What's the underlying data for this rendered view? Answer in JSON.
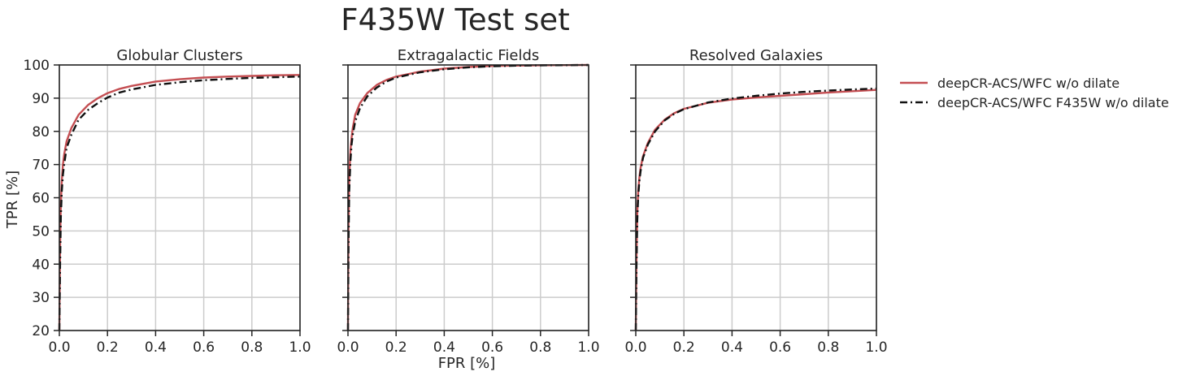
{
  "chart_data": {
    "type": "line",
    "title": "F435W Test set",
    "xlabel": "FPR [%]",
    "ylabel": "TPR [%]",
    "xlim": [
      0.0,
      1.0
    ],
    "ylim": [
      20,
      100
    ],
    "xticks": [
      "0.0",
      "0.2",
      "0.4",
      "0.6",
      "0.8",
      "1.0"
    ],
    "yticks": [
      "20",
      "30",
      "40",
      "50",
      "60",
      "70",
      "80",
      "90",
      "100"
    ],
    "grid": true,
    "legend_position": "outside-right",
    "legend": [
      {
        "label": "deepCR-ACS/WFC w/o dilate",
        "color": "#c44e52",
        "style": "solid"
      },
      {
        "label": "deepCR-ACS/WFC F435W w/o dilate",
        "color": "#111111",
        "style": "dashdot"
      }
    ],
    "panels": [
      {
        "title": "Globular Clusters",
        "series": [
          {
            "name": "deepCR-ACS/WFC w/o dilate",
            "color": "#c44e52",
            "style": "solid",
            "x": [
              0.0,
              0.003,
              0.006,
              0.01,
              0.015,
              0.02,
              0.03,
              0.05,
              0.08,
              0.12,
              0.16,
              0.2,
              0.25,
              0.3,
              0.4,
              0.5,
              0.6,
              0.7,
              0.8,
              0.9,
              1.0
            ],
            "y": [
              20,
              45,
              58,
              65,
              70,
              73,
              77,
              81,
              85,
              88,
              90,
              91.5,
              92.8,
              93.7,
              95.0,
              95.7,
              96.2,
              96.5,
              96.7,
              96.9,
              97.0
            ]
          },
          {
            "name": "deepCR-ACS/WFC F435W w/o dilate",
            "color": "#111111",
            "style": "dashdot",
            "x": [
              0.0,
              0.003,
              0.006,
              0.01,
              0.015,
              0.02,
              0.03,
              0.05,
              0.08,
              0.12,
              0.16,
              0.2,
              0.25,
              0.3,
              0.4,
              0.5,
              0.6,
              0.7,
              0.8,
              0.9,
              1.0
            ],
            "y": [
              20,
              40,
              54,
              62,
              67,
              70,
              75,
              79,
              83.5,
              86.5,
              88.5,
              90.2,
              91.7,
              92.6,
              94.0,
              94.8,
              95.4,
              95.8,
              96.1,
              96.3,
              96.5
            ]
          }
        ]
      },
      {
        "title": "Extragalactic Fields",
        "series": [
          {
            "name": "deepCR-ACS/WFC w/o dilate",
            "color": "#c44e52",
            "style": "solid",
            "x": [
              0.0,
              0.002,
              0.005,
              0.01,
              0.015,
              0.02,
              0.03,
              0.05,
              0.08,
              0.12,
              0.16,
              0.2,
              0.3,
              0.4,
              0.5,
              0.6,
              0.7,
              0.8,
              0.9,
              1.0
            ],
            "y": [
              20,
              50,
              66,
              74,
              78,
              81,
              85,
              88.5,
              91.5,
              94,
              95.5,
              96.5,
              98,
              98.9,
              99.4,
              99.7,
              99.8,
              99.9,
              99.95,
              100
            ]
          },
          {
            "name": "deepCR-ACS/WFC F435W w/o dilate",
            "color": "#111111",
            "style": "dashdot",
            "x": [
              0.0,
              0.002,
              0.005,
              0.01,
              0.015,
              0.02,
              0.03,
              0.05,
              0.08,
              0.12,
              0.16,
              0.2,
              0.3,
              0.4,
              0.5,
              0.6,
              0.7,
              0.8,
              0.9,
              1.0
            ],
            "y": [
              20,
              45,
              62,
              71,
              76,
              79,
              83,
              87,
              90.5,
              93.2,
              95,
              96.2,
              97.8,
              98.7,
              99.3,
              99.6,
              99.8,
              99.9,
              99.95,
              100
            ]
          }
        ]
      },
      {
        "title": "Resolved Galaxies",
        "series": [
          {
            "name": "deepCR-ACS/WFC w/o dilate",
            "color": "#c44e52",
            "style": "solid",
            "x": [
              0.0,
              0.003,
              0.006,
              0.01,
              0.015,
              0.02,
              0.03,
              0.05,
              0.08,
              0.12,
              0.16,
              0.2,
              0.3,
              0.4,
              0.5,
              0.6,
              0.7,
              0.8,
              0.9,
              1.0
            ],
            "y": [
              20,
              42,
              55,
              62,
              66,
              69,
              72.5,
              76.5,
              80.5,
              83.5,
              85.5,
              86.8,
              88.6,
              89.6,
              90.2,
              90.7,
              91.2,
              91.7,
              92.1,
              92.5
            ]
          },
          {
            "name": "deepCR-ACS/WFC F435W w/o dilate",
            "color": "#111111",
            "style": "dashdot",
            "x": [
              0.0,
              0.003,
              0.006,
              0.01,
              0.015,
              0.02,
              0.03,
              0.05,
              0.08,
              0.12,
              0.16,
              0.2,
              0.3,
              0.4,
              0.5,
              0.6,
              0.7,
              0.8,
              0.9,
              1.0
            ],
            "y": [
              20,
              40,
              53,
              60.5,
              65,
              68,
              72,
              76,
              80,
              83.3,
              85.3,
              86.7,
              88.7,
              89.9,
              90.7,
              91.4,
              91.9,
              92.3,
              92.6,
              92.9
            ]
          }
        ]
      }
    ]
  }
}
